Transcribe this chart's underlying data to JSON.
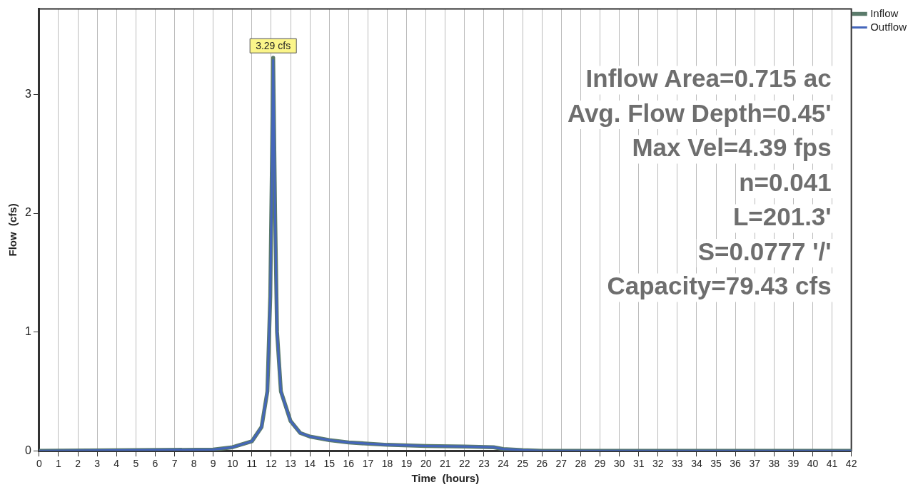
{
  "chart_data": {
    "type": "line",
    "xlabel": "Time  (hours)",
    "ylabel": "Flow  (cfs)",
    "xlim": [
      0,
      42
    ],
    "ylim": [
      0,
      3.72
    ],
    "xticks": [
      0,
      1,
      2,
      3,
      4,
      5,
      6,
      7,
      8,
      9,
      10,
      11,
      12,
      13,
      14,
      15,
      16,
      17,
      18,
      19,
      20,
      21,
      22,
      23,
      24,
      25,
      26,
      27,
      28,
      29,
      30,
      31,
      32,
      33,
      34,
      35,
      36,
      37,
      38,
      39,
      40,
      41,
      42
    ],
    "yticks": [
      0,
      1,
      2,
      3
    ],
    "grid": "x",
    "legend": "right",
    "marker": "none",
    "line_style": "solid",
    "series": [
      {
        "name": "Inflow",
        "color": "#5a7a6a",
        "x": [
          0,
          5,
          9,
          10,
          11,
          11.5,
          11.8,
          11.95,
          12.05,
          12.1,
          12.2,
          12.3,
          12.5,
          13,
          13.5,
          14,
          15,
          16,
          17,
          18,
          20,
          22,
          23.5,
          24,
          25,
          26,
          42
        ],
        "values": [
          0,
          0.005,
          0.01,
          0.03,
          0.08,
          0.2,
          0.5,
          1.3,
          2.6,
          3.31,
          2.0,
          1.0,
          0.5,
          0.25,
          0.15,
          0.12,
          0.09,
          0.07,
          0.06,
          0.05,
          0.04,
          0.035,
          0.03,
          0.015,
          0.005,
          0,
          0
        ]
      },
      {
        "name": "Outflow",
        "color": "#4466bb",
        "x": [
          0,
          5,
          9,
          10,
          11,
          11.5,
          11.8,
          11.95,
          12.05,
          12.1,
          12.2,
          12.3,
          12.5,
          13,
          13.5,
          14,
          15,
          16,
          17,
          18,
          20,
          22,
          23.5,
          24,
          25,
          26,
          42
        ],
        "values": [
          0,
          0.005,
          0.01,
          0.03,
          0.08,
          0.2,
          0.5,
          1.3,
          2.5,
          3.29,
          2.0,
          1.0,
          0.5,
          0.25,
          0.15,
          0.12,
          0.09,
          0.07,
          0.06,
          0.05,
          0.04,
          0.035,
          0.03,
          0.015,
          0.005,
          0,
          0
        ]
      }
    ],
    "annotations": [
      {
        "text": "3.29 cfs",
        "x": 12.1,
        "y": 3.29
      },
      "Inflow Area=0.715 ac",
      "Avg. Flow Depth=0.45'",
      "Max Vel=4.39 fps",
      "n=0.041",
      "L=201.3'",
      "S=0.0777 '/'",
      "Capacity=79.43 cfs"
    ]
  }
}
